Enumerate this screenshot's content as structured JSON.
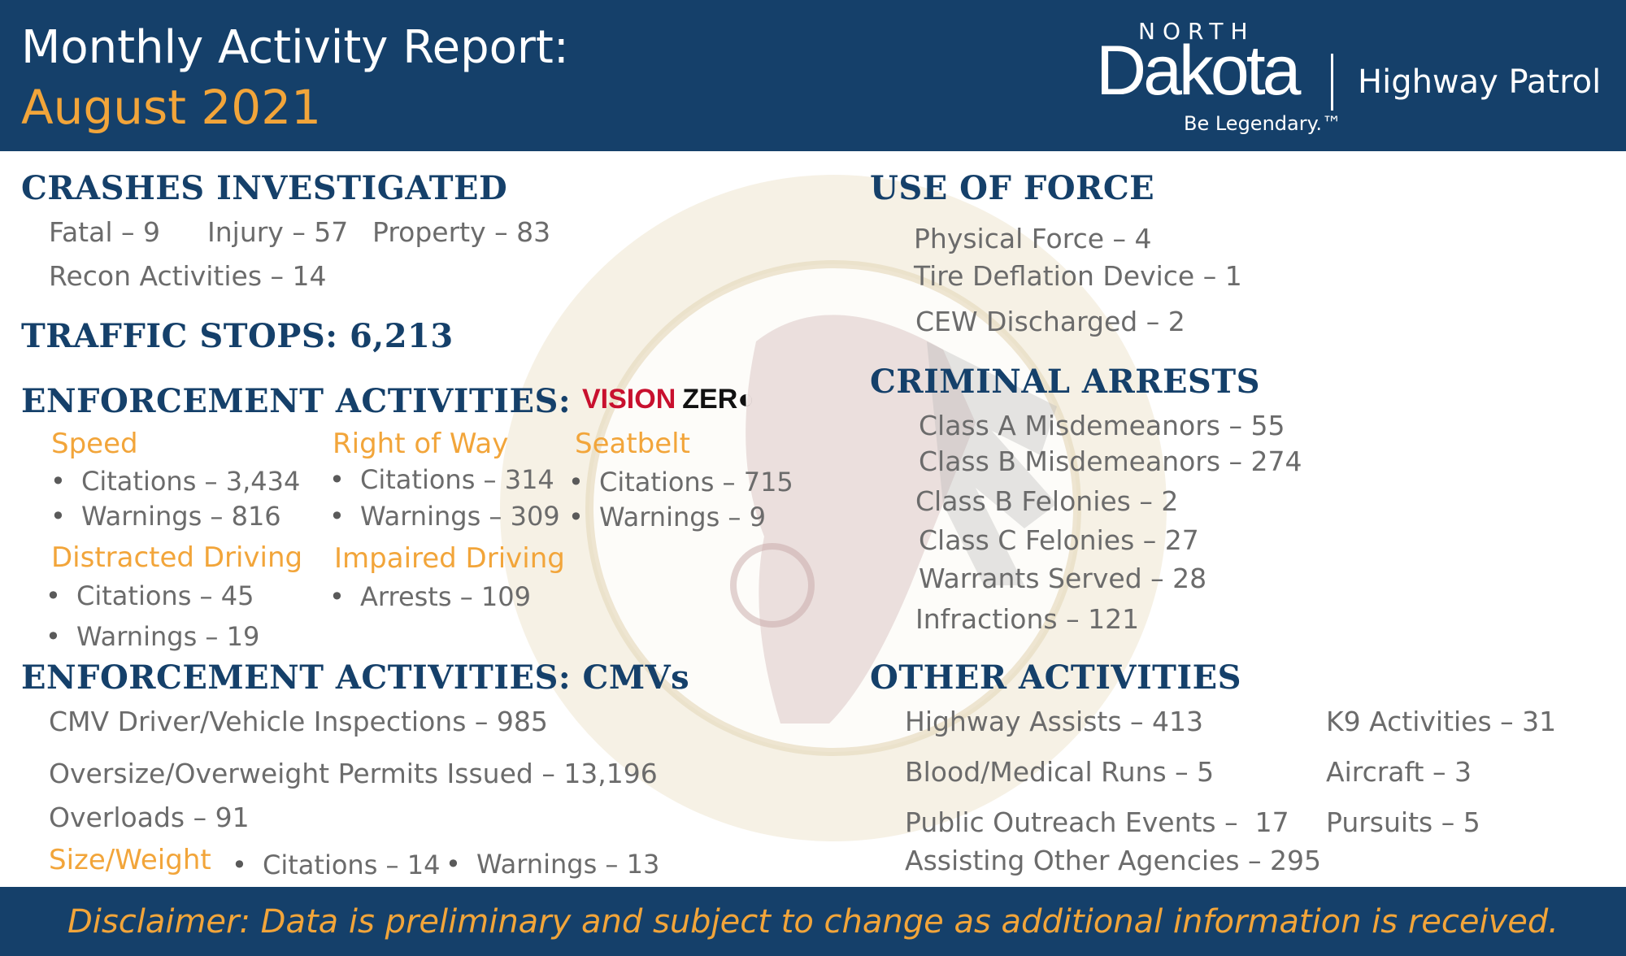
{
  "header": {
    "title_line1": "Monthly Activity Report:",
    "title_line2": "August 2021",
    "brand_north": "NORTH",
    "brand_dakota": "Dakota",
    "brand_tagline": "Be Legendary.™",
    "brand_division": "Highway Patrol"
  },
  "crashes": {
    "heading": "CRASHES INVESTIGATED",
    "fatal": "Fatal – 9",
    "injury": "Injury – 57",
    "property": "Property – 83",
    "recon": "Recon Activities – 14"
  },
  "traffic_stops": {
    "heading": "TRAFFIC STOPS: 6,213"
  },
  "enforcement": {
    "heading": "ENFORCEMENT ACTIVITIES:",
    "vision_zero_a": "VISION",
    "vision_zero_b": "ZER",
    "vision_zero_c": "◐",
    "speed": {
      "label": "Speed",
      "citations": "Citations – 3,434",
      "warnings": "Warnings – 816"
    },
    "right_of_way": {
      "label": "Right of Way",
      "citations": "Citations – 314",
      "warnings": "Warnings – 309"
    },
    "seatbelt": {
      "label": "Seatbelt",
      "citations": "Citations – 715",
      "warnings": "Warnings – 9"
    },
    "distracted": {
      "label": "Distracted Driving",
      "citations": "Citations – 45",
      "warnings": "Warnings – 19"
    },
    "impaired": {
      "label": "Impaired Driving",
      "arrests": "Arrests – 109"
    }
  },
  "cmv": {
    "heading": "ENFORCEMENT ACTIVITIES: CMVs",
    "inspections": "CMV Driver/Vehicle Inspections – 985",
    "permits": "Oversize/Overweight Permits Issued – 13,196",
    "overloads": "Overloads – 91",
    "size_weight_label": "Size/Weight",
    "size_weight_citations": "Citations – 14",
    "size_weight_warnings": "Warnings – 13"
  },
  "use_of_force": {
    "heading": "USE OF FORCE",
    "physical": "Physical Force – 4",
    "tire": "Tire Deflation Device – 1",
    "cew": "CEW Discharged – 2"
  },
  "criminal_arrests": {
    "heading": "CRIMINAL ARRESTS",
    "items": [
      "Class A Misdemeanors – 55",
      "Class B Misdemeanors – 274",
      "Class B Felonies – 2",
      "Class C Felonies – 27",
      "Warrants Served – 28",
      "Infractions – 121"
    ]
  },
  "other": {
    "heading": "OTHER ACTIVITIES",
    "highway_assists": "Highway Assists – 413",
    "blood_runs": "Blood/Medical Runs – 5",
    "outreach": "Public Outreach Events –  17",
    "assisting": "Assisting Other Agencies – 295",
    "k9": "K9 Activities – 31",
    "aircraft": "Aircraft – 3",
    "pursuits": "Pursuits – 5"
  },
  "footer": {
    "disclaimer": "Disclaimer: Data is preliminary and subject to change as additional information is received."
  },
  "colors": {
    "navy": "#15406a",
    "gold": "#f2a53a",
    "gray_text": "#6b6b6b",
    "vision_red": "#c8102e"
  }
}
